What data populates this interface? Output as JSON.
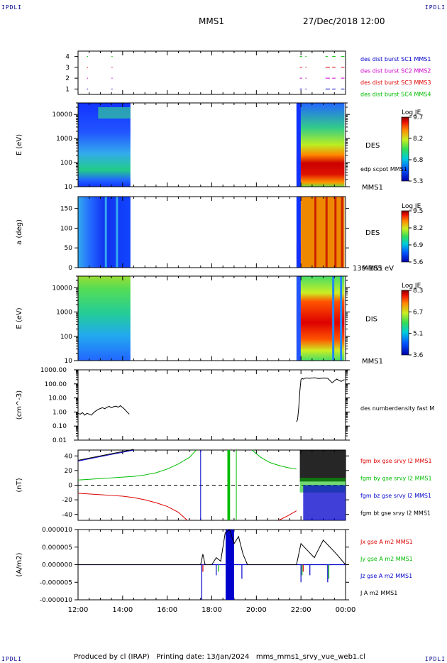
{
  "corners": {
    "tl": "IPDLI",
    "tr": "IPDLI",
    "bl": "IPDLI",
    "br": "IPDLI"
  },
  "header": {
    "spacecraft": "MMS1",
    "datetime": "27/Dec/2018 12:00"
  },
  "footer": {
    "text": "Produced by cl (IRAP)   Printing date: 13/Jan/2024   mms_mms1_srvy_vue_web1.cl"
  },
  "x_axis": {
    "ticks": [
      "12:00",
      "14:00",
      "16:00",
      "18:00",
      "20:00",
      "22:00",
      "00:00"
    ]
  },
  "chart_data": [
    {
      "type": "scatter",
      "panel": "burst",
      "yticks": [
        "1",
        "2",
        "3",
        "4"
      ],
      "legend": [
        {
          "label": "des dist burst SC1 MMS1",
          "color": "#0000cc"
        },
        {
          "label": "des dist burst SC2 MMS2",
          "color": "#cc00cc"
        },
        {
          "label": "des dist burst SC3 MMS3",
          "color": "#dd0000"
        },
        {
          "label": "des dist burst SC4 MMS4",
          "color": "#00bb00"
        }
      ],
      "segments": [
        {
          "sc": 4,
          "x": [
            [
              12.4,
              12.45
            ],
            [
              13.5,
              13.55
            ],
            [
              21.95,
              22.05
            ],
            [
              22.2,
              22.25
            ],
            [
              23.1,
              23.2
            ],
            [
              23.4,
              23.55
            ],
            [
              23.8,
              23.95
            ]
          ]
        },
        {
          "sc": 3,
          "x": [
            [
              12.4,
              12.45
            ],
            [
              13.5,
              13.55
            ],
            [
              21.95,
              22.05
            ],
            [
              22.2,
              22.25
            ],
            [
              23.1,
              23.3
            ],
            [
              23.4,
              23.55
            ],
            [
              23.8,
              23.95
            ]
          ]
        },
        {
          "sc": 2,
          "x": [
            [
              12.4,
              12.45
            ],
            [
              13.5,
              13.55
            ],
            [
              21.95,
              22.05
            ],
            [
              22.2,
              22.25
            ],
            [
              23.1,
              23.3
            ],
            [
              23.4,
              23.55
            ],
            [
              23.8,
              23.95
            ]
          ]
        },
        {
          "sc": 1,
          "x": [
            [
              12.4,
              12.45
            ],
            [
              13.5,
              13.55
            ],
            [
              21.95,
              22.05
            ],
            [
              22.2,
              22.25
            ],
            [
              23.1,
              23.3
            ],
            [
              23.4,
              23.55
            ],
            [
              23.8,
              23.95
            ]
          ]
        }
      ]
    },
    {
      "type": "heatmap",
      "panel": "des-energy",
      "ylabel": "E (eV)",
      "yticks": [
        "10",
        "100",
        "1000",
        "10000"
      ],
      "label": "DES",
      "sublabel": "MMS1",
      "overlay_label": "edp scpot MMS1",
      "colorbar": {
        "title": "Log JE",
        "ticks": [
          "9.7",
          "8.2",
          "6.8",
          "5.3"
        ]
      },
      "coverage": [
        [
          12.0,
          14.35
        ],
        [
          21.8,
          23.95
        ]
      ]
    },
    {
      "type": "heatmap",
      "panel": "des-pitch",
      "ylabel": "a (deg)",
      "yticks": [
        "0",
        "50",
        "100",
        "150"
      ],
      "label": "DES",
      "sublabel": "MMS1",
      "footnote": "139-185 eV",
      "colorbar": {
        "title": "Log JE",
        "ticks": [
          "9.5",
          "8.2",
          "6.9",
          "5.6"
        ]
      },
      "coverage": [
        [
          12.0,
          14.35
        ],
        [
          21.8,
          23.95
        ]
      ]
    },
    {
      "type": "heatmap",
      "panel": "dis-energy",
      "ylabel": "E (eV)",
      "yticks": [
        "10",
        "100",
        "1000",
        "10000"
      ],
      "label": "DIS",
      "sublabel": "MMS1",
      "colorbar": {
        "title": "Log JE",
        "ticks": [
          "8.3",
          "6.7",
          "5.1",
          "3.6"
        ]
      },
      "coverage": [
        [
          12.0,
          14.35
        ],
        [
          21.8,
          23.95
        ]
      ]
    },
    {
      "type": "line",
      "panel": "density",
      "ylabel": "(cm^-3)",
      "yscale": "log",
      "ylim": [
        0.01,
        1000
      ],
      "yticks": [
        "0.01",
        "0.10",
        "1.00",
        "10.00",
        "100.00",
        "1000.00"
      ],
      "legend": [
        {
          "label": "des numberdensity fast M",
          "color": "#000000"
        }
      ],
      "series": [
        {
          "x": [
            12.0,
            12.1,
            12.2,
            12.3,
            12.4,
            12.5,
            12.6,
            12.7,
            12.8,
            12.9,
            13.0,
            13.1,
            13.2,
            13.3,
            13.4,
            13.5,
            13.6,
            13.7,
            13.8,
            13.9,
            14.0,
            14.1,
            14.2,
            14.3
          ],
          "y": [
            0.8,
            0.7,
            0.9,
            0.6,
            0.8,
            0.7,
            0.6,
            0.9,
            1.2,
            1.5,
            1.8,
            2.0,
            1.7,
            2.2,
            2.5,
            2.0,
            2.4,
            2.6,
            2.2,
            2.8,
            2.1,
            1.5,
            1.0,
            0.7
          ]
        },
        {
          "x": [
            21.8,
            21.85,
            21.9,
            21.95,
            22.0,
            22.05,
            22.1,
            22.2,
            22.4,
            22.6,
            22.8,
            23.0,
            23.2,
            23.4,
            23.6,
            23.8,
            23.95
          ],
          "y": [
            0.2,
            0.3,
            2.0,
            30,
            200,
            250,
            220,
            260,
            250,
            270,
            240,
            260,
            250,
            120,
            220,
            150,
            200
          ]
        }
      ]
    },
    {
      "type": "line",
      "panel": "fgm",
      "ylabel": "(nT)",
      "ylim": [
        -48,
        48
      ],
      "yticks": [
        "-40",
        "-20",
        "0",
        "20",
        "40"
      ],
      "legend": [
        {
          "label": "fgm bx gse srvy l2 MMS1",
          "color": "#dd0000"
        },
        {
          "label": "fgm by gse srvy l2 MMS1",
          "color": "#00bb00"
        },
        {
          "label": "fgm bz gse srvy l2 MMS1",
          "color": "#0000cc"
        },
        {
          "label": "fgm bt gse srvy l2 MMS1",
          "color": "#000000"
        }
      ],
      "series": [
        {
          "name": "bx",
          "x": [
            12.0,
            12.5,
            13.0,
            13.5,
            14.0,
            14.5,
            15.0,
            15.5,
            16.0,
            16.5,
            16.9
          ],
          "y": [
            -11,
            -12,
            -13,
            -14,
            -15,
            -17,
            -20,
            -24,
            -29,
            -37,
            -48
          ]
        },
        {
          "name": "by",
          "x": [
            12.0,
            12.5,
            13.0,
            13.5,
            14.0,
            14.5,
            15.0,
            15.5,
            16.0,
            16.5,
            17.0,
            17.3
          ],
          "y": [
            7,
            8,
            9,
            10,
            11,
            12,
            14,
            17,
            22,
            29,
            38,
            48
          ]
        },
        {
          "name": "bz",
          "x": [
            12.0,
            12.5,
            13.0,
            13.5,
            14.0,
            14.5
          ],
          "y": [
            33,
            36,
            39,
            42,
            45,
            48
          ]
        },
        {
          "name": "bt",
          "x": [
            12.0,
            12.5,
            13.0,
            13.5,
            14.0,
            14.5
          ],
          "y": [
            34,
            37,
            40,
            43,
            46,
            49
          ]
        },
        {
          "name": "by",
          "x": [
            19.8,
            20.2,
            20.6,
            21.0,
            21.4,
            21.8
          ],
          "y": [
            48,
            38,
            31,
            27,
            24,
            22
          ]
        },
        {
          "name": "bx",
          "x": [
            21.0,
            21.4,
            21.8
          ],
          "y": [
            -48,
            -42,
            -35
          ]
        }
      ]
    },
    {
      "type": "line",
      "panel": "current",
      "ylabel": "(A/m2)",
      "ylim": [
        -1e-05,
        1e-05
      ],
      "yticks": [
        "-0.000010",
        "-0.000005",
        "0.000000",
        "0.000005",
        "0.000010"
      ],
      "legend": [
        {
          "label": "Jx gse A m2 MMS1",
          "color": "#dd0000"
        },
        {
          "label": "Jy gse A m2 MMS1",
          "color": "#00bb00"
        },
        {
          "label": "Jz gse A m2 MMS1",
          "color": "#0000cc"
        },
        {
          "label": "J A m2 MMS1",
          "color": "#000000"
        }
      ],
      "series": [
        {
          "name": "J",
          "x": [
            12.0,
            17.5,
            17.6,
            17.7,
            18.0,
            18.2,
            18.4,
            18.6,
            18.8,
            19.0,
            19.2,
            19.4,
            19.6,
            20.0,
            21.8,
            22.0,
            22.3,
            22.6,
            23.0,
            23.3,
            23.6,
            24.0
          ],
          "y": [
            0,
            0,
            3e-06,
            0,
            0,
            2e-06,
            1e-06,
            9e-06,
            1e-05,
            6e-06,
            8e-06,
            3e-06,
            0,
            0,
            0,
            6e-06,
            4e-06,
            2e-06,
            7e-06,
            5e-06,
            3e-06,
            0
          ]
        }
      ]
    }
  ]
}
